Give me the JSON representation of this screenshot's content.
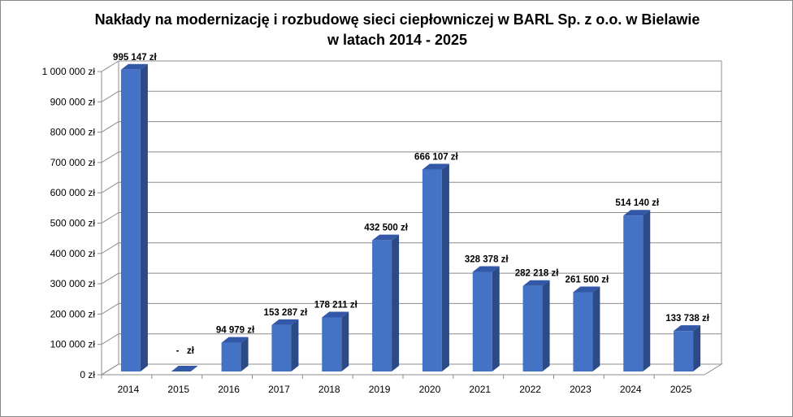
{
  "chart_data": {
    "type": "bar",
    "title": "Nakłady na modernizację i rozbudowę sieci ciepłowniczej w BARL Sp. z o.o. w Bielawie",
    "subtitle": "w latach 2014 - 2025",
    "xlabel": "",
    "ylabel": "",
    "ylim": [
      0,
      1000000
    ],
    "grid": true,
    "legend": "none",
    "categories": [
      "2014",
      "2015",
      "2016",
      "2017",
      "2018",
      "2019",
      "2020",
      "2021",
      "2022",
      "2023",
      "2024",
      "2025"
    ],
    "values": [
      995147,
      0,
      94979,
      153287,
      178211,
      432500,
      666107,
      328378,
      282218,
      261500,
      514140,
      133738
    ],
    "data_labels": [
      "995 147 zł",
      "-   zł",
      "94 979 zł",
      "153 287 zł",
      "178 211 zł",
      "432 500 zł",
      "666 107 zł",
      "328 378 zł",
      "282 218 zł",
      "261 500 zł",
      "514 140 zł",
      "133 738 zł"
    ],
    "yticks": [
      0,
      100000,
      200000,
      300000,
      400000,
      500000,
      600000,
      700000,
      800000,
      900000,
      1000000
    ],
    "ytick_labels": [
      "0 zł",
      "100 000 zł",
      "200 000 zł",
      "300 000 zł",
      "400 000 zł",
      "500 000 zł",
      "600 000 zł",
      "700 000 zł",
      "800 000 zł",
      "900 000 zł",
      "1 000 000 zł"
    ],
    "colors": {
      "front": "#4472c4",
      "side": "#2c4a86",
      "top": "#3358a8"
    }
  }
}
